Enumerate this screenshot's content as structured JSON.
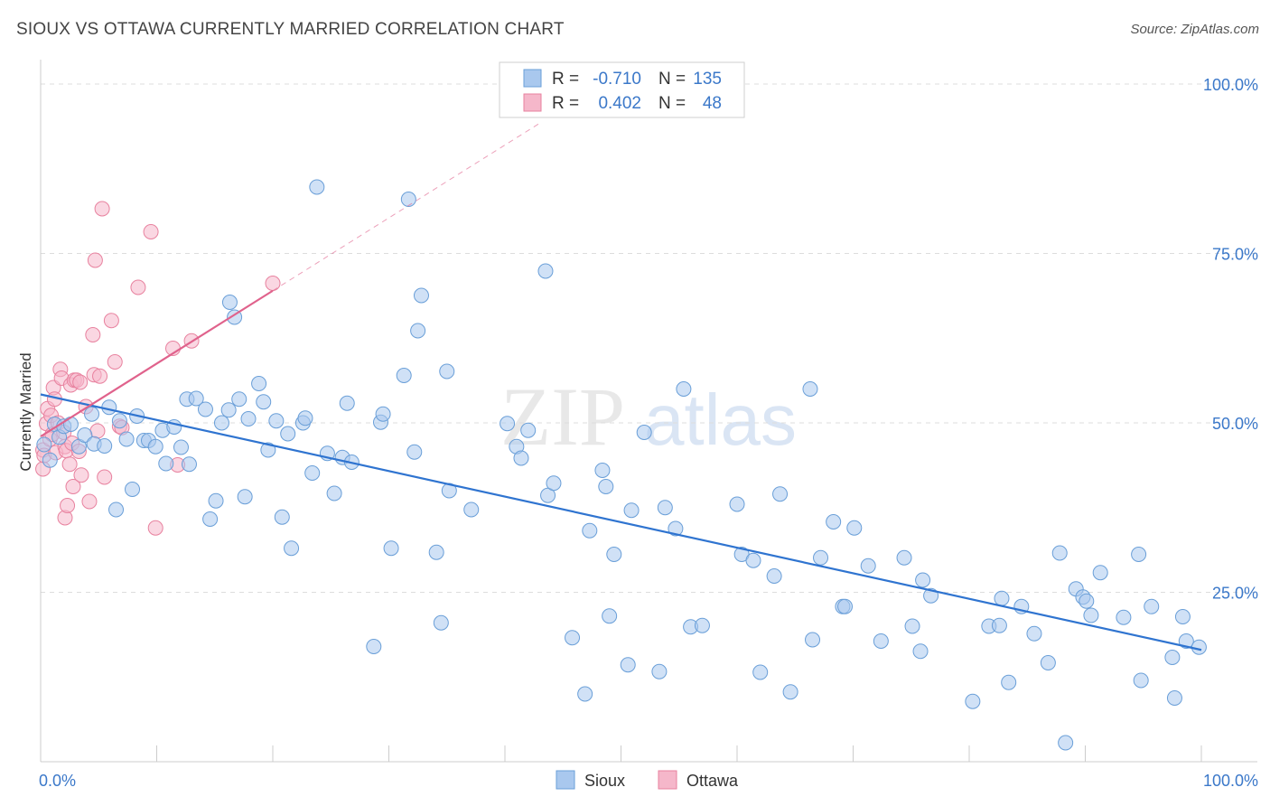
{
  "header": {
    "title": "SIOUX VS OTTAWA CURRENTLY MARRIED CORRELATION CHART",
    "source": "Source: ZipAtlas.com"
  },
  "watermark": {
    "zip": "ZIP",
    "atlas": "atlas"
  },
  "legend_stats": [
    {
      "r_label": "R =",
      "r_value": "-0.710",
      "n_label": "N =",
      "n_value": "135"
    },
    {
      "r_label": "R =",
      "r_value": "0.402",
      "n_label": "N =",
      "n_value": "48"
    }
  ],
  "bottom_legend": [
    {
      "label": "Sioux"
    },
    {
      "label": "Ottawa"
    }
  ],
  "colors": {
    "sioux_fill": "#a9c8ee",
    "sioux_stroke": "#6a9fd8",
    "sioux_line": "#2f74d0",
    "ottawa_fill": "#f5b7ca",
    "ottawa_stroke": "#e8829f",
    "ottawa_line": "#e0628c",
    "value_text": "#3b78c9",
    "grid": "#dddddd"
  },
  "chart_data": {
    "type": "scatter",
    "title": "SIOUX VS OTTAWA CURRENTLY MARRIED CORRELATION CHART",
    "xlabel": "",
    "ylabel": "Currently Married",
    "xlim": [
      0,
      100
    ],
    "ylim": [
      0,
      102
    ],
    "x_tick_labels": [
      "0.0%",
      "100.0%"
    ],
    "y_ticks": [
      {
        "value": 25,
        "label": "25.0%"
      },
      {
        "value": 50,
        "label": "50.0%"
      },
      {
        "value": 75,
        "label": "75.0%"
      },
      {
        "value": 100,
        "label": "100.0%"
      }
    ],
    "series": [
      {
        "name": "Sioux",
        "r": -0.71,
        "n": 135,
        "trendline": {
          "x": [
            0,
            100
          ],
          "y": [
            54.2,
            16.5
          ]
        },
        "points": [
          [
            0.3,
            46.8
          ],
          [
            0.8,
            44.5
          ],
          [
            1.2,
            49.8
          ],
          [
            1.6,
            47.9
          ],
          [
            2.0,
            49.5
          ],
          [
            2.6,
            49.8
          ],
          [
            3.3,
            46.5
          ],
          [
            3.8,
            48.2
          ],
          [
            4.4,
            51.3
          ],
          [
            4.6,
            46.9
          ],
          [
            5.5,
            46.6
          ],
          [
            5.9,
            52.3
          ],
          [
            6.5,
            37.2
          ],
          [
            6.8,
            50.3
          ],
          [
            7.4,
            47.6
          ],
          [
            7.9,
            40.2
          ],
          [
            8.3,
            51.0
          ],
          [
            8.9,
            47.4
          ],
          [
            9.3,
            47.4
          ],
          [
            9.9,
            46.5
          ],
          [
            10.5,
            48.9
          ],
          [
            10.8,
            44.0
          ],
          [
            11.5,
            49.4
          ],
          [
            12.1,
            46.4
          ],
          [
            12.6,
            53.5
          ],
          [
            12.8,
            43.9
          ],
          [
            13.4,
            53.6
          ],
          [
            14.2,
            52.0
          ],
          [
            14.6,
            35.8
          ],
          [
            15.1,
            38.5
          ],
          [
            15.6,
            50.0
          ],
          [
            16.2,
            51.9
          ],
          [
            16.3,
            67.8
          ],
          [
            16.7,
            65.6
          ],
          [
            17.1,
            53.5
          ],
          [
            17.6,
            39.1
          ],
          [
            17.9,
            50.6
          ],
          [
            18.8,
            55.8
          ],
          [
            19.2,
            53.1
          ],
          [
            19.6,
            46.0
          ],
          [
            20.3,
            50.3
          ],
          [
            20.8,
            36.1
          ],
          [
            21.3,
            48.4
          ],
          [
            21.6,
            31.5
          ],
          [
            22.6,
            50.0
          ],
          [
            22.8,
            50.7
          ],
          [
            23.4,
            42.6
          ],
          [
            23.8,
            84.8
          ],
          [
            24.7,
            45.5
          ],
          [
            25.3,
            39.6
          ],
          [
            26.0,
            44.9
          ],
          [
            26.4,
            52.9
          ],
          [
            26.8,
            44.2
          ],
          [
            28.7,
            17.0
          ],
          [
            29.3,
            50.1
          ],
          [
            29.5,
            51.3
          ],
          [
            30.2,
            31.5
          ],
          [
            31.3,
            57.0
          ],
          [
            31.7,
            83.0
          ],
          [
            32.2,
            45.7
          ],
          [
            32.5,
            63.6
          ],
          [
            32.8,
            68.8
          ],
          [
            34.1,
            30.9
          ],
          [
            34.5,
            20.5
          ],
          [
            35.0,
            57.6
          ],
          [
            35.2,
            40.0
          ],
          [
            37.1,
            37.2
          ],
          [
            40.2,
            49.9
          ],
          [
            41.0,
            46.5
          ],
          [
            41.4,
            44.8
          ],
          [
            42.0,
            48.9
          ],
          [
            43.5,
            72.4
          ],
          [
            43.7,
            39.3
          ],
          [
            44.2,
            41.1
          ],
          [
            45.8,
            18.3
          ],
          [
            46.9,
            10.0
          ],
          [
            47.3,
            34.1
          ],
          [
            48.4,
            43.0
          ],
          [
            48.7,
            40.6
          ],
          [
            49.0,
            21.5
          ],
          [
            49.4,
            30.6
          ],
          [
            50.6,
            14.3
          ],
          [
            50.9,
            37.1
          ],
          [
            52.0,
            48.6
          ],
          [
            53.3,
            13.3
          ],
          [
            53.8,
            37.5
          ],
          [
            54.7,
            34.4
          ],
          [
            55.4,
            55.0
          ],
          [
            56.0,
            19.9
          ],
          [
            57.0,
            20.1
          ],
          [
            60.0,
            38.0
          ],
          [
            60.4,
            30.6
          ],
          [
            61.4,
            29.7
          ],
          [
            62.0,
            13.2
          ],
          [
            63.2,
            27.4
          ],
          [
            63.7,
            39.5
          ],
          [
            64.6,
            10.3
          ],
          [
            66.3,
            55.0
          ],
          [
            66.5,
            18.0
          ],
          [
            67.2,
            30.1
          ],
          [
            68.3,
            35.4
          ],
          [
            69.1,
            22.9
          ],
          [
            69.3,
            22.9
          ],
          [
            70.1,
            34.5
          ],
          [
            71.3,
            28.9
          ],
          [
            72.4,
            17.8
          ],
          [
            74.4,
            30.1
          ],
          [
            75.1,
            20.0
          ],
          [
            75.8,
            16.3
          ],
          [
            76.0,
            26.8
          ],
          [
            76.7,
            24.5
          ],
          [
            80.3,
            8.9
          ],
          [
            81.7,
            20.0
          ],
          [
            82.6,
            20.1
          ],
          [
            82.8,
            24.1
          ],
          [
            83.4,
            11.7
          ],
          [
            84.5,
            22.9
          ],
          [
            85.6,
            18.9
          ],
          [
            86.8,
            14.6
          ],
          [
            87.8,
            30.8
          ],
          [
            88.3,
            2.8
          ],
          [
            89.2,
            25.5
          ],
          [
            89.8,
            24.3
          ],
          [
            90.1,
            23.7
          ],
          [
            90.5,
            21.6
          ],
          [
            91.3,
            27.9
          ],
          [
            93.3,
            21.3
          ],
          [
            94.6,
            30.6
          ],
          [
            94.8,
            12.0
          ],
          [
            95.7,
            22.9
          ],
          [
            97.5,
            15.4
          ],
          [
            97.7,
            9.4
          ],
          [
            98.4,
            21.4
          ],
          [
            98.7,
            17.8
          ],
          [
            99.8,
            16.9
          ]
        ]
      },
      {
        "name": "Ottawa",
        "r": 0.402,
        "n": 48,
        "trendline": {
          "x": [
            0,
            20
          ],
          "y": [
            48.0,
            69.5
          ]
        },
        "points": [
          [
            0.2,
            46.0
          ],
          [
            0.2,
            43.2
          ],
          [
            0.3,
            45.2
          ],
          [
            0.5,
            49.9
          ],
          [
            0.6,
            52.1
          ],
          [
            0.8,
            47.6
          ],
          [
            0.9,
            51.1
          ],
          [
            1.0,
            48.3
          ],
          [
            1.1,
            55.2
          ],
          [
            1.2,
            53.5
          ],
          [
            1.3,
            45.6
          ],
          [
            1.5,
            50.0
          ],
          [
            1.7,
            57.9
          ],
          [
            1.8,
            56.6
          ],
          [
            2.0,
            48.6
          ],
          [
            2.1,
            46.5
          ],
          [
            2.1,
            36.0
          ],
          [
            2.2,
            45.9
          ],
          [
            2.3,
            37.8
          ],
          [
            2.5,
            43.9
          ],
          [
            2.6,
            55.6
          ],
          [
            2.7,
            47.0
          ],
          [
            2.8,
            40.6
          ],
          [
            2.9,
            56.3
          ],
          [
            3.1,
            56.3
          ],
          [
            3.3,
            45.8
          ],
          [
            3.4,
            56.0
          ],
          [
            3.5,
            42.3
          ],
          [
            3.9,
            52.4
          ],
          [
            4.2,
            38.4
          ],
          [
            4.5,
            63.0
          ],
          [
            4.6,
            57.1
          ],
          [
            4.7,
            74.0
          ],
          [
            4.9,
            48.8
          ],
          [
            5.1,
            56.9
          ],
          [
            5.3,
            81.6
          ],
          [
            5.5,
            42.0
          ],
          [
            6.1,
            65.1
          ],
          [
            6.4,
            59.0
          ],
          [
            6.8,
            49.5
          ],
          [
            7.0,
            49.3
          ],
          [
            8.4,
            70.0
          ],
          [
            9.5,
            78.2
          ],
          [
            9.9,
            34.5
          ],
          [
            11.4,
            61.0
          ],
          [
            11.8,
            43.8
          ],
          [
            13.0,
            62.1
          ],
          [
            20.0,
            70.6
          ]
        ]
      }
    ]
  }
}
